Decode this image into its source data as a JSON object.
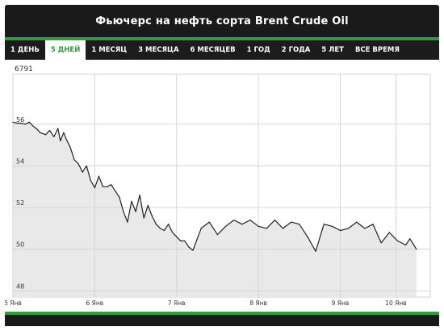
{
  "header": {
    "title": "Фьючерс на нефть сорта Brent Crude Oil"
  },
  "tabs": [
    {
      "label": "1 ДЕНЬ",
      "active": false
    },
    {
      "label": "5 ДНЕЙ",
      "active": true
    },
    {
      "label": "1 МЕСЯЦ",
      "active": false
    },
    {
      "label": "3 МЕСЯЦА",
      "active": false
    },
    {
      "label": "6 МЕСЯЦЕВ",
      "active": false
    },
    {
      "label": "1 ГОД",
      "active": false
    },
    {
      "label": "2 ГОДА",
      "active": false
    },
    {
      "label": "5 ЛЕТ",
      "active": false
    },
    {
      "label": "ВСЕ ВРЕМЯ",
      "active": false
    }
  ],
  "colors": {
    "accent": "#2f9e3f",
    "bar": "#1c1c1c",
    "line": "#222222",
    "fill": "#e9e9e9"
  },
  "chart_data": {
    "type": "area",
    "corner_label": "6791",
    "ylim": [
      47.7,
      58.4
    ],
    "yticks": [
      48,
      50,
      52,
      54,
      56
    ],
    "xlim": [
      0,
      5.1
    ],
    "xticks": [
      {
        "x": 0,
        "label": "5 Янв"
      },
      {
        "x": 1,
        "label": "6 Янв"
      },
      {
        "x": 2,
        "label": "7 Янв"
      },
      {
        "x": 3,
        "label": "8 Янв"
      },
      {
        "x": 4,
        "label": "9 Янв"
      },
      {
        "x": 4.68,
        "label": "10 Янв"
      }
    ],
    "grid": true,
    "x": [
      0,
      0.05,
      0.1,
      0.15,
      0.2,
      0.25,
      0.3,
      0.33,
      0.4,
      0.45,
      0.5,
      0.55,
      0.58,
      0.62,
      0.65,
      0.7,
      0.75,
      0.8,
      0.85,
      0.9,
      0.95,
      1.0,
      1.05,
      1.1,
      1.15,
      1.2,
      1.25,
      1.3,
      1.35,
      1.4,
      1.45,
      1.5,
      1.55,
      1.6,
      1.65,
      1.7,
      1.75,
      1.8,
      1.85,
      1.9,
      1.95,
      2.0,
      2.05,
      2.1,
      2.15,
      2.2,
      2.3,
      2.4,
      2.5,
      2.6,
      2.7,
      2.8,
      2.9,
      3.0,
      3.1,
      3.2,
      3.3,
      3.4,
      3.5,
      3.6,
      3.7,
      3.8,
      3.9,
      4.0,
      4.1,
      4.2,
      4.3,
      4.4,
      4.5,
      4.6,
      4.7,
      4.8,
      4.85,
      4.9,
      4.93
    ],
    "values": [
      56.1,
      56.05,
      56.05,
      56.0,
      56.1,
      55.9,
      55.75,
      55.6,
      55.5,
      55.7,
      55.4,
      55.8,
      55.2,
      55.6,
      55.3,
      54.9,
      54.3,
      54.1,
      53.7,
      54.0,
      53.3,
      52.95,
      53.5,
      53.0,
      53.0,
      53.1,
      52.8,
      52.5,
      51.8,
      51.3,
      52.3,
      51.8,
      52.6,
      51.5,
      52.1,
      51.6,
      51.2,
      51.0,
      50.9,
      51.2,
      50.8,
      50.6,
      50.4,
      50.4,
      50.1,
      49.95,
      51.0,
      51.3,
      50.7,
      51.1,
      51.4,
      51.2,
      51.4,
      51.1,
      51.0,
      51.4,
      51.0,
      51.3,
      51.2,
      50.6,
      49.9,
      51.2,
      51.1,
      50.9,
      51.0,
      51.3,
      51.0,
      51.2,
      50.3,
      50.8,
      50.4,
      50.2,
      50.5,
      50.2,
      50.0
    ]
  }
}
